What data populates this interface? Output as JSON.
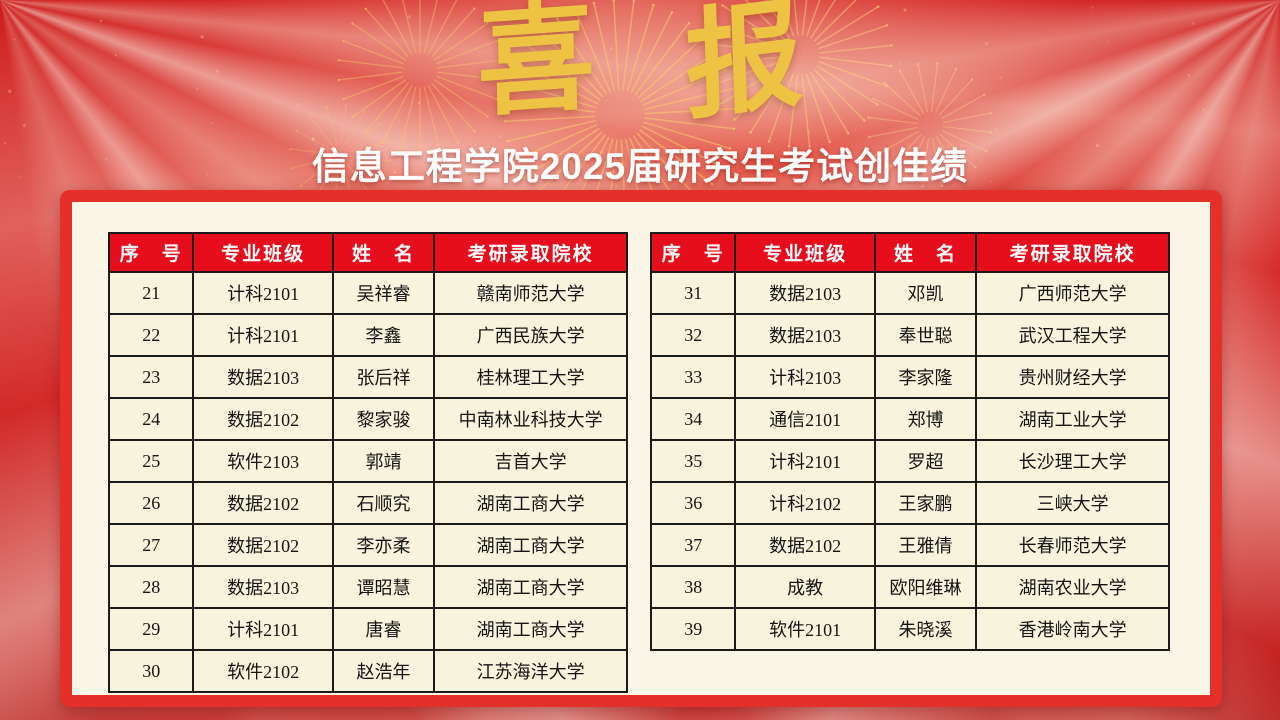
{
  "banner": {
    "char_left": "喜",
    "char_right": "报"
  },
  "title": "信息工程学院2025届研究生考试创佳绩",
  "colors": {
    "background_red": "#c91515",
    "frame_red": "#e4302a",
    "panel_cream": "#f9f6e8",
    "header_red": "#e60e1d",
    "cell_cream": "#f8f3dd",
    "banner_gold": "#eec243",
    "header_text": "#ffffff",
    "cell_text": "#141414"
  },
  "tables": [
    {
      "columns": [
        "序　号",
        "专业班级",
        "姓　名",
        "考研录取院校"
      ],
      "rows": [
        [
          "21",
          "计科2101",
          "吴祥睿",
          "赣南师范大学"
        ],
        [
          "22",
          "计科2101",
          "李鑫",
          "广西民族大学"
        ],
        [
          "23",
          "数据2103",
          "张后祥",
          "桂林理工大学"
        ],
        [
          "24",
          "数据2102",
          "黎家骏",
          "中南林业科技大学"
        ],
        [
          "25",
          "软件2103",
          "郭靖",
          "吉首大学"
        ],
        [
          "26",
          "数据2102",
          "石顺究",
          "湖南工商大学"
        ],
        [
          "27",
          "数据2102",
          "李亦柔",
          "湖南工商大学"
        ],
        [
          "28",
          "数据2103",
          "谭昭慧",
          "湖南工商大学"
        ],
        [
          "29",
          "计科2101",
          "唐睿",
          "湖南工商大学"
        ],
        [
          "30",
          "软件2102",
          "赵浩年",
          "江苏海洋大学"
        ]
      ]
    },
    {
      "columns": [
        "序　号",
        "专业班级",
        "姓　名",
        "考研录取院校"
      ],
      "rows": [
        [
          "31",
          "数据2103",
          "邓凯",
          "广西师范大学"
        ],
        [
          "32",
          "数据2103",
          "奉世聪",
          "武汉工程大学"
        ],
        [
          "33",
          "计科2103",
          "李家隆",
          "贵州财经大学"
        ],
        [
          "34",
          "通信2101",
          "郑博",
          "湖南工业大学"
        ],
        [
          "35",
          "计科2101",
          "罗超",
          "长沙理工大学"
        ],
        [
          "36",
          "计科2102",
          "王家鹏",
          "三峡大学"
        ],
        [
          "37",
          "数据2102",
          "王雅倩",
          "长春师范大学"
        ],
        [
          "38",
          "成教",
          "欧阳维琳",
          "湖南农业大学"
        ],
        [
          "39",
          "软件2101",
          "朱晓溪",
          "香港岭南大学"
        ]
      ]
    }
  ]
}
